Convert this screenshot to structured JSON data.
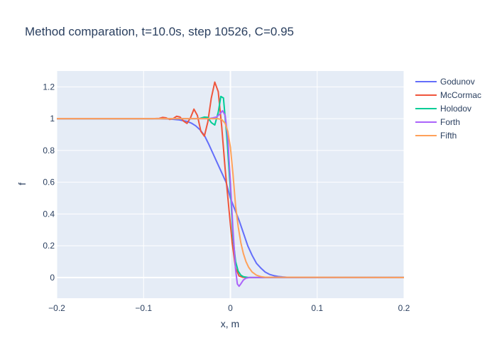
{
  "chart_data": {
    "type": "line",
    "title": "Method comparation, t=10.0s, step 10526, C=0.95",
    "xlabel": "x, m",
    "ylabel": "f",
    "xlim": [
      -0.2,
      0.2
    ],
    "ylim": [
      -0.13,
      1.3
    ],
    "xticks": [
      -0.2,
      -0.1,
      0,
      0.1,
      0.2
    ],
    "xtick_labels": [
      "−0.2",
      "−0.1",
      "0",
      "0.1",
      "0.2"
    ],
    "yticks": [
      0,
      0.2,
      0.4,
      0.6,
      0.8,
      1,
      1.2
    ],
    "ytick_labels": [
      "0",
      "0.2",
      "0.4",
      "0.6",
      "0.8",
      "1",
      "1.2"
    ],
    "grid": true,
    "legend_position": "top-right",
    "background": "#e5ecf6",
    "series": [
      {
        "name": "Godunov",
        "color": "#636efa",
        "x": [
          -0.2,
          -0.1,
          -0.08,
          -0.07,
          -0.06,
          -0.05,
          -0.045,
          -0.04,
          -0.035,
          -0.03,
          -0.025,
          -0.02,
          -0.015,
          -0.01,
          -0.005,
          0,
          0.005,
          0.01,
          0.015,
          0.02,
          0.025,
          0.03,
          0.035,
          0.04,
          0.045,
          0.05,
          0.055,
          0.06,
          0.065,
          0.07,
          0.08,
          0.1,
          0.2
        ],
        "y": [
          1,
          1,
          1,
          0.998,
          0.993,
          0.983,
          0.972,
          0.955,
          0.93,
          0.895,
          0.84,
          0.78,
          0.72,
          0.66,
          0.6,
          0.5,
          0.43,
          0.36,
          0.28,
          0.2,
          0.14,
          0.09,
          0.06,
          0.035,
          0.02,
          0.012,
          0.007,
          0.004,
          0.002,
          0.001,
          0,
          0,
          0
        ]
      },
      {
        "name": "McCormac",
        "color": "#ef553b",
        "x": [
          -0.2,
          -0.09,
          -0.082,
          -0.078,
          -0.074,
          -0.07,
          -0.066,
          -0.062,
          -0.058,
          -0.054,
          -0.05,
          -0.046,
          -0.042,
          -0.038,
          -0.034,
          -0.03,
          -0.026,
          -0.022,
          -0.018,
          -0.014,
          -0.01,
          -0.006,
          -0.002,
          0.002,
          0.006,
          0.01,
          0.014,
          0.018,
          0.025,
          0.2
        ],
        "y": [
          1,
          1,
          1.002,
          1.008,
          1.005,
          0.995,
          1,
          1.015,
          1.01,
          0.985,
          0.97,
          1.005,
          1.06,
          1.02,
          0.92,
          0.89,
          0.98,
          1.13,
          1.23,
          1.17,
          0.95,
          0.68,
          0.45,
          0.22,
          0.06,
          0.01,
          0.002,
          0,
          0,
          0
        ]
      },
      {
        "name": "Holodov",
        "color": "#00cc96",
        "x": [
          -0.2,
          -0.045,
          -0.04,
          -0.035,
          -0.03,
          -0.026,
          -0.022,
          -0.018,
          -0.014,
          -0.011,
          -0.008,
          -0.004,
          0,
          0.003,
          0.006,
          0.009,
          0.012,
          0.015,
          0.02,
          0.03,
          0.2
        ],
        "y": [
          1,
          1,
          1,
          1.002,
          1.01,
          1.008,
          0.975,
          0.96,
          1.04,
          1.14,
          1.13,
          0.88,
          0.55,
          0.25,
          0.1,
          0.04,
          0.015,
          0.005,
          0.001,
          0,
          0
        ]
      },
      {
        "name": "Forth",
        "color": "#ab63fa",
        "x": [
          -0.2,
          -0.025,
          -0.02,
          -0.016,
          -0.012,
          -0.009,
          -0.006,
          -0.003,
          0,
          0.003,
          0.006,
          0.008,
          0.01,
          0.012,
          0.015,
          0.018,
          0.022,
          0.028,
          0.2
        ],
        "y": [
          1,
          1,
          1.005,
          1.01,
          1.03,
          1.05,
          1.02,
          0.88,
          0.6,
          0.3,
          0.05,
          -0.04,
          -0.055,
          -0.04,
          -0.015,
          -0.004,
          0,
          0,
          0
        ]
      },
      {
        "name": "Fifth",
        "color": "#ffa15a",
        "x": [
          -0.2,
          -0.015,
          -0.01,
          -0.006,
          -0.003,
          0,
          0.003,
          0.006,
          0.009,
          0.012,
          0.015,
          0.018,
          0.021,
          0.025,
          0.03,
          0.035,
          0.04,
          0.2
        ],
        "y": [
          1,
          1,
          0.995,
          0.97,
          0.92,
          0.82,
          0.65,
          0.45,
          0.32,
          0.22,
          0.15,
          0.1,
          0.065,
          0.035,
          0.015,
          0.006,
          0.002,
          0
        ]
      }
    ]
  }
}
